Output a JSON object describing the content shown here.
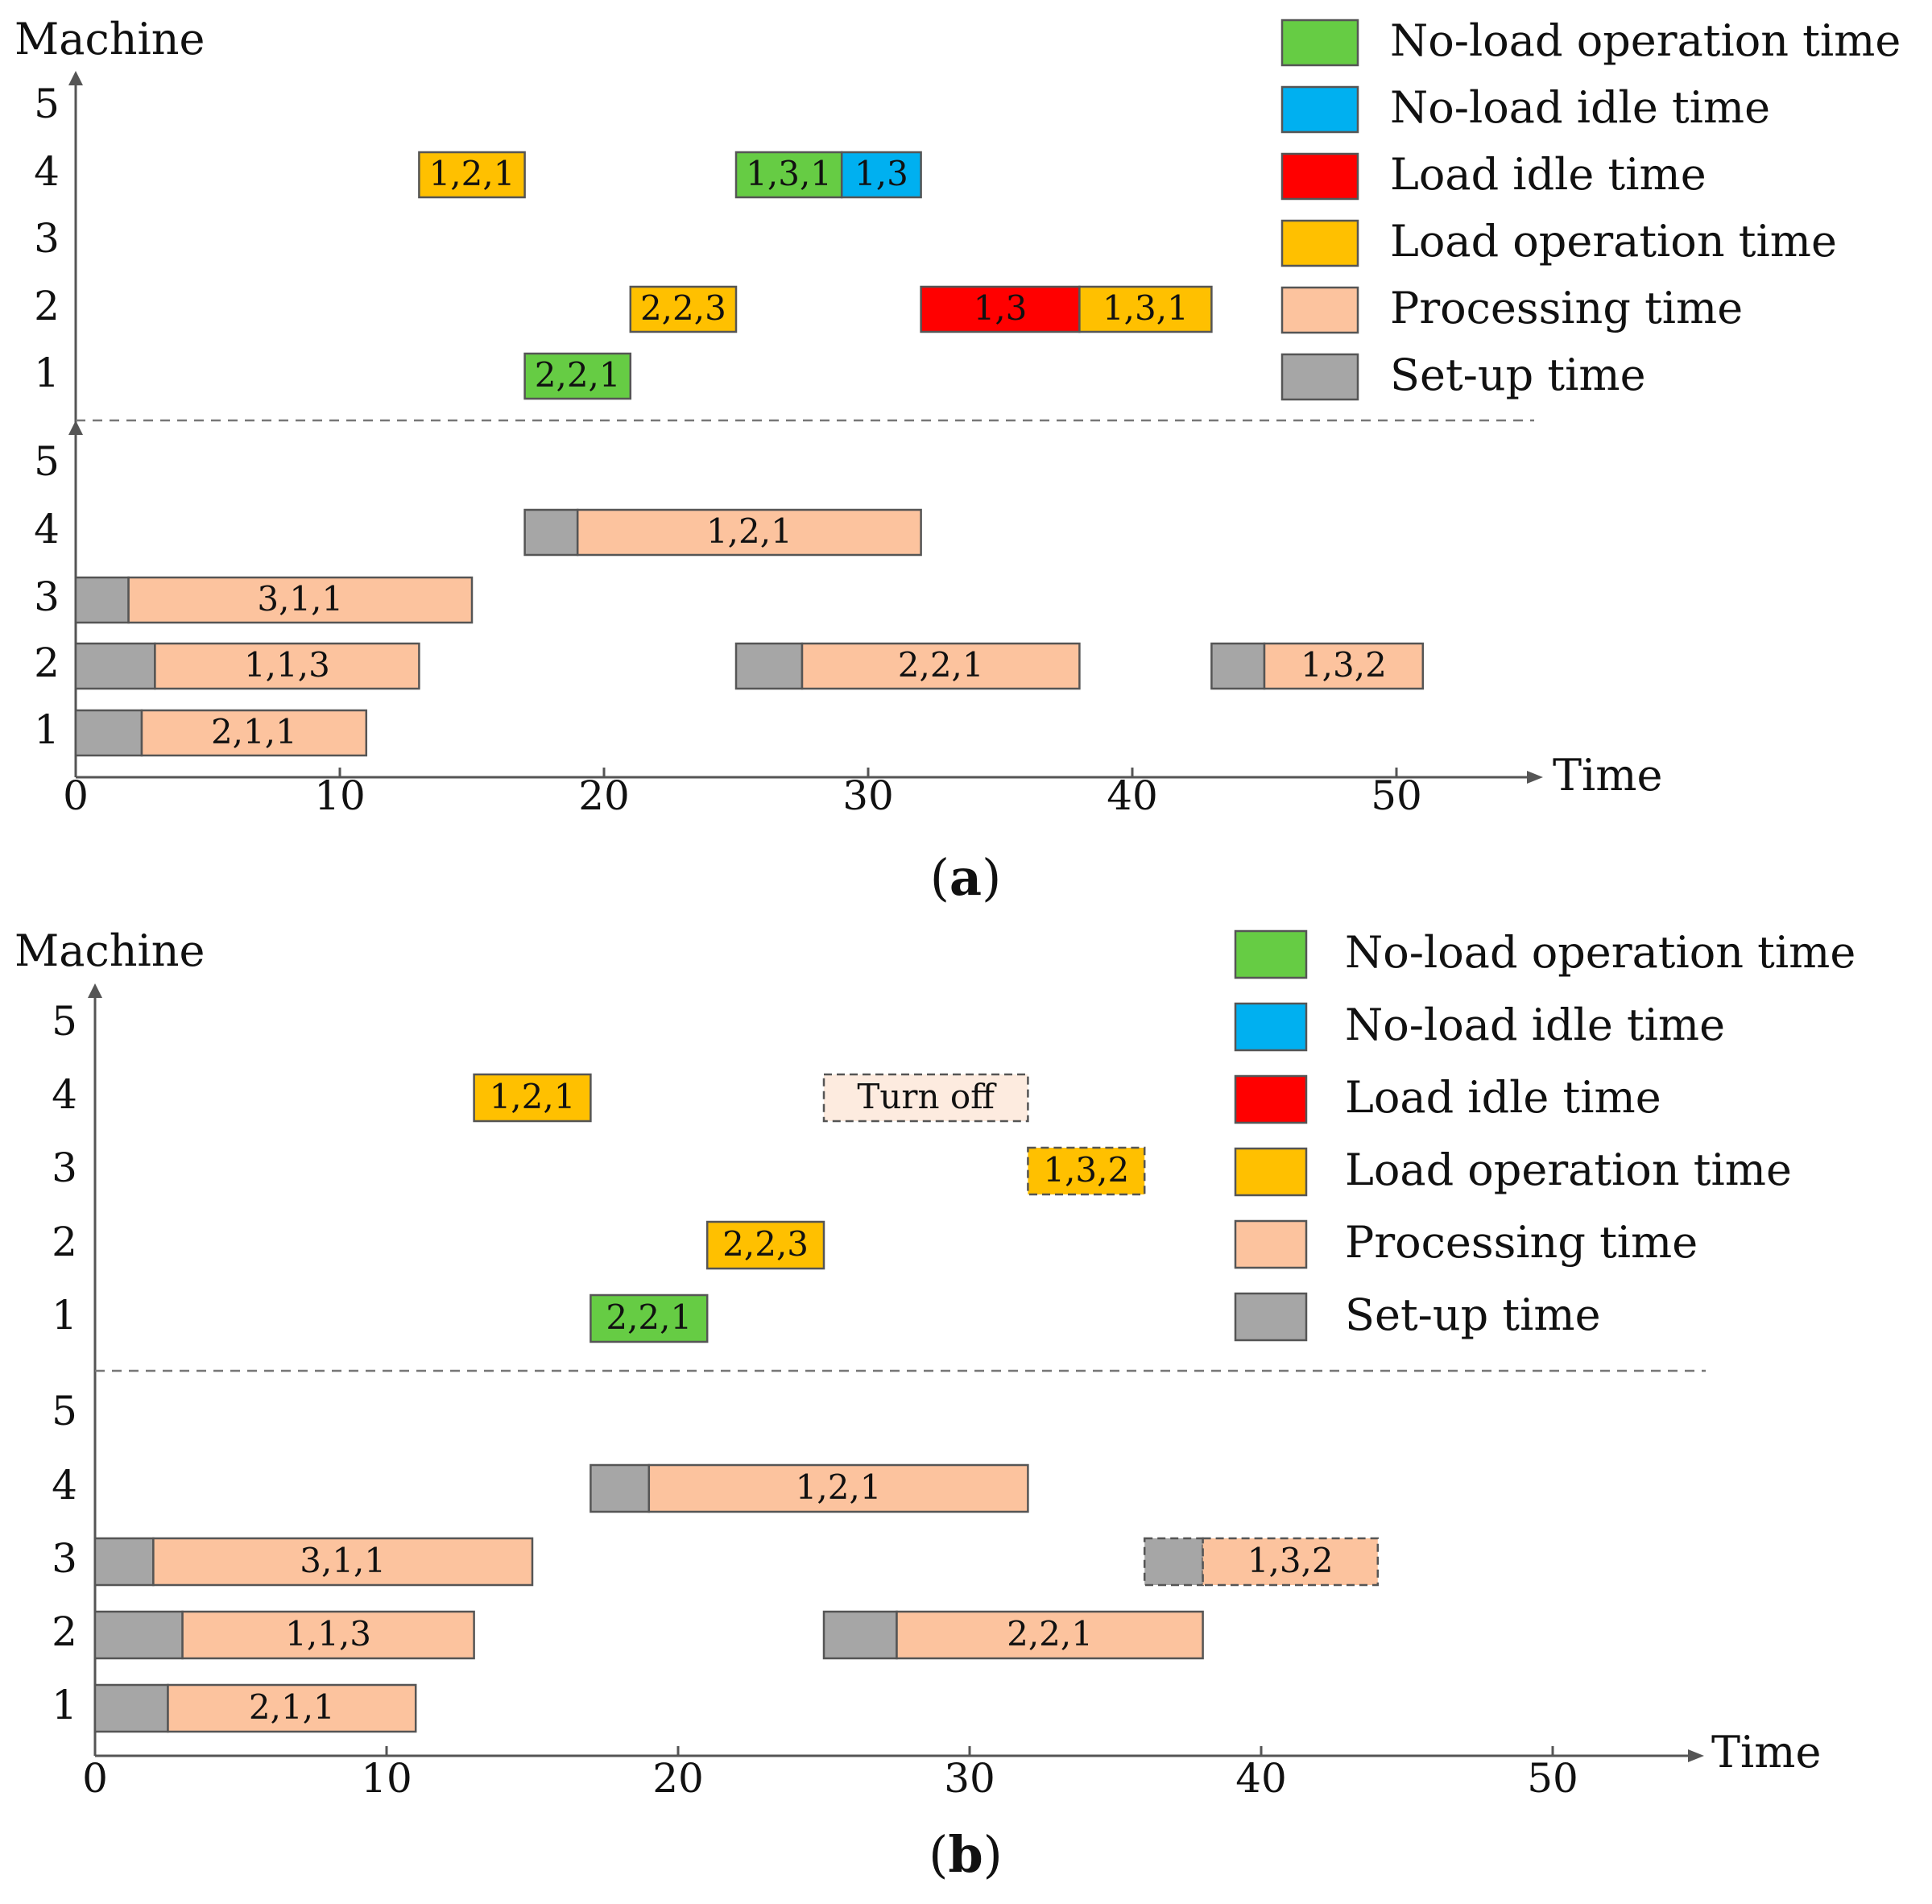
{
  "chart_data": [
    {
      "panel": "a",
      "type": "gantt",
      "caption": {
        "open": "(",
        "letter": "a",
        "close": ")"
      },
      "xlabel": "Time",
      "ylabel": "Machine",
      "xlim": [
        0,
        55
      ],
      "xticks": [
        0,
        10,
        20,
        30,
        40,
        50
      ],
      "machines": [
        1,
        2,
        3,
        4,
        5
      ],
      "legend": [
        {
          "key": "noload_op",
          "label": "No-load operation time"
        },
        {
          "key": "noload_idle",
          "label": "No-load idle time"
        },
        {
          "key": "load_idle",
          "label": "Load idle time"
        },
        {
          "key": "load_op",
          "label": "Load operation time"
        },
        {
          "key": "processing",
          "label": "Processing time"
        },
        {
          "key": "setup",
          "label": "Set-up time"
        }
      ],
      "transport_tasks": [
        {
          "vehicle": 4,
          "start": 13,
          "end": 17,
          "kind": "load_op",
          "label": "1,2,1"
        },
        {
          "vehicle": 4,
          "start": 25,
          "end": 29,
          "kind": "noload_op",
          "label": "1,3,1"
        },
        {
          "vehicle": 4,
          "start": 29,
          "end": 32,
          "kind": "noload_idle",
          "label": "1,3"
        },
        {
          "vehicle": 2,
          "start": 21,
          "end": 25,
          "kind": "load_op",
          "label": "2,2,3"
        },
        {
          "vehicle": 2,
          "start": 32,
          "end": 38,
          "kind": "load_idle",
          "label": "1,3"
        },
        {
          "vehicle": 2,
          "start": 38,
          "end": 43,
          "kind": "load_op",
          "label": "1,3,1"
        },
        {
          "vehicle": 1,
          "start": 17,
          "end": 21,
          "kind": "noload_op",
          "label": "2,2,1"
        }
      ],
      "machine_tasks": [
        {
          "machine": 4,
          "start": 17,
          "setup_end": 19,
          "end": 32,
          "label": "1,2,1"
        },
        {
          "machine": 3,
          "start": 0,
          "setup_end": 2,
          "end": 15,
          "label": "3,1,1"
        },
        {
          "machine": 2,
          "start": 0,
          "setup_end": 3,
          "end": 13,
          "label": "1,1,3"
        },
        {
          "machine": 2,
          "start": 25,
          "setup_end": 27.5,
          "end": 38,
          "label": "2,2,1"
        },
        {
          "machine": 2,
          "start": 43,
          "setup_end": 45,
          "end": 51,
          "label": "1,3,2"
        },
        {
          "machine": 1,
          "start": 0,
          "setup_end": 2.5,
          "end": 11,
          "label": "2,1,1"
        }
      ]
    },
    {
      "panel": "b",
      "type": "gantt",
      "caption": {
        "open": "(",
        "letter": "b",
        "close": ")"
      },
      "xlabel": "Time",
      "ylabel": "Machine",
      "xlim": [
        0,
        55
      ],
      "xticks": [
        0,
        10,
        20,
        30,
        40,
        50
      ],
      "machines": [
        1,
        2,
        3,
        4,
        5
      ],
      "legend": [
        {
          "key": "noload_op",
          "label": "No-load operation time"
        },
        {
          "key": "noload_idle",
          "label": "No-load idle time"
        },
        {
          "key": "load_idle",
          "label": "Load idle time"
        },
        {
          "key": "load_op",
          "label": "Load operation time"
        },
        {
          "key": "processing",
          "label": "Processing time"
        },
        {
          "key": "setup",
          "label": "Set-up time"
        }
      ],
      "transport_tasks": [
        {
          "vehicle": 4,
          "start": 13,
          "end": 17,
          "kind": "load_op",
          "label": "1,2,1"
        },
        {
          "vehicle": 4,
          "start": 25,
          "end": 32,
          "kind": "turnoff",
          "label": "Turn off",
          "dashed": true
        },
        {
          "vehicle": 3,
          "start": 32,
          "end": 36,
          "kind": "load_op",
          "label": "1,3,2",
          "dashed": true
        },
        {
          "vehicle": 2,
          "start": 21,
          "end": 25,
          "kind": "load_op",
          "label": "2,2,3"
        },
        {
          "vehicle": 1,
          "start": 17,
          "end": 21,
          "kind": "noload_op",
          "label": "2,2,1"
        }
      ],
      "machine_tasks": [
        {
          "machine": 4,
          "start": 17,
          "setup_end": 19,
          "end": 32,
          "label": "1,2,1"
        },
        {
          "machine": 3,
          "start": 0,
          "setup_end": 2,
          "end": 15,
          "label": "3,1,1"
        },
        {
          "machine": 3,
          "start": 36,
          "setup_end": 38,
          "end": 44,
          "label": "1,3,2",
          "dashed": true
        },
        {
          "machine": 2,
          "start": 0,
          "setup_end": 3,
          "end": 13,
          "label": "1,1,3"
        },
        {
          "machine": 2,
          "start": 25,
          "setup_end": 27.5,
          "end": 38,
          "label": "2,2,1"
        },
        {
          "machine": 1,
          "start": 0,
          "setup_end": 2.5,
          "end": 11,
          "label": "2,1,1"
        }
      ]
    }
  ],
  "colors": {
    "noload_op": "#66cc44",
    "noload_idle": "#00b0f0",
    "load_idle": "#ff0000",
    "load_op": "#ffc000",
    "processing": "#fcc39e",
    "setup": "#a6a6a6",
    "turnoff": "#fdebdf",
    "border": "#555555",
    "axis": "#555555"
  }
}
